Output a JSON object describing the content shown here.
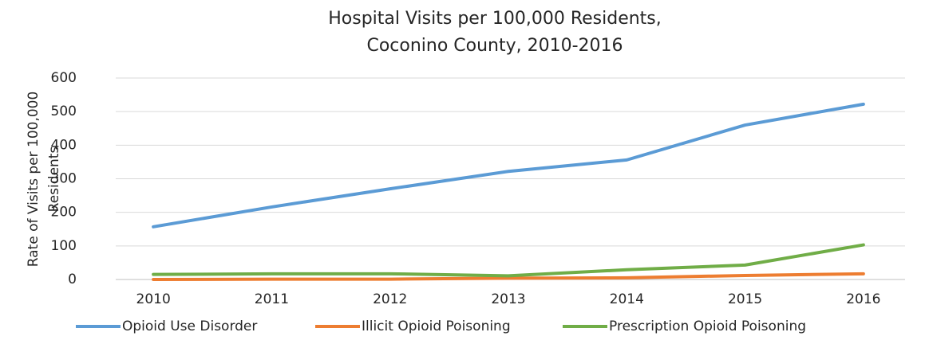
{
  "chart_data": {
    "type": "line",
    "title": [
      "Hospital Visits per 100,000 Residents,",
      "Coconino County, 2010-2016"
    ],
    "y_label": [
      "Rate of Visits per 100,000",
      "Residents"
    ],
    "categories": [
      "2010",
      "2011",
      "2012",
      "2013",
      "2014",
      "2015",
      "2016"
    ],
    "series": [
      {
        "name": "Opioid Use Disorder",
        "color": "#5b9bd5",
        "values": [
          157,
          216,
          270,
          322,
          356,
          460,
          522
        ]
      },
      {
        "name": "Illicit Opioid Poisoning",
        "color": "#ed7d31",
        "values": [
          0,
          1,
          1,
          4,
          5,
          12,
          17
        ]
      },
      {
        "name": "Prescription Opioid Poisoning",
        "color": "#70ad47",
        "values": [
          15,
          17,
          17,
          11,
          29,
          43,
          103
        ]
      }
    ],
    "ylim": [
      0,
      600
    ],
    "yticks": [
      0,
      100,
      200,
      300,
      400,
      500,
      600
    ],
    "grid": true,
    "legend": "bottom"
  }
}
